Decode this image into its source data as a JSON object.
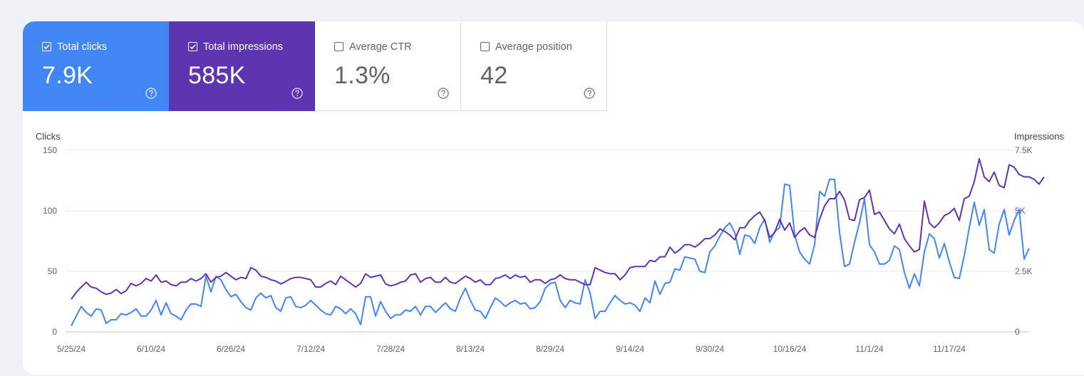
{
  "metrics": [
    {
      "label": "Total clicks",
      "value": "7.9K",
      "checked": true,
      "color": "#4285f4",
      "icon": "checkbox-checked-icon"
    },
    {
      "label": "Total impressions",
      "value": "585K",
      "checked": true,
      "color": "#5e35b1",
      "icon": "checkbox-checked-icon"
    },
    {
      "label": "Average CTR",
      "value": "1.3%",
      "checked": false,
      "color": "#ffffff",
      "icon": "checkbox-empty-icon"
    },
    {
      "label": "Average position",
      "value": "42",
      "checked": false,
      "color": "#ffffff",
      "icon": "checkbox-empty-icon"
    }
  ],
  "chart_data": {
    "type": "line",
    "left_axis_title": "Clicks",
    "right_axis_title": "Impressions",
    "left_ticks": [
      "150",
      "100",
      "50",
      "0"
    ],
    "right_ticks": [
      "7.5K",
      "5K",
      "2.5K",
      "0"
    ],
    "left_ylim": [
      0,
      150
    ],
    "right_ylim": [
      0,
      7500
    ],
    "x_ticks": [
      "5/25/24",
      "6/10/24",
      "6/26/24",
      "7/12/24",
      "7/28/24",
      "8/13/24",
      "8/29/24",
      "9/14/24",
      "9/30/24",
      "10/16/24",
      "11/1/24",
      "11/17/24"
    ],
    "x_start": "5/25/24",
    "x_end": "11/26/24",
    "grid": true,
    "series": [
      {
        "axis": "left",
        "color": "#4285f4",
        "values": [
          5,
          13,
          21,
          16,
          13,
          19,
          18,
          7,
          10,
          10,
          15,
          14,
          16,
          19,
          13,
          13,
          18,
          26,
          14,
          24,
          15,
          13,
          10,
          18,
          23,
          23,
          21,
          46,
          33,
          46,
          43,
          35,
          29,
          31,
          25,
          20,
          18,
          28,
          32,
          28,
          30,
          20,
          17,
          28,
          29,
          21,
          20,
          22,
          26,
          22,
          18,
          15,
          14,
          21,
          19,
          15,
          19,
          15,
          6,
          29,
          29,
          13,
          25,
          17,
          11,
          14,
          14,
          18,
          17,
          21,
          14,
          21,
          21,
          16,
          20,
          24,
          19,
          17,
          28,
          36,
          26,
          18,
          17,
          11,
          20,
          28,
          25,
          21,
          24,
          26,
          23,
          24,
          19,
          20,
          25,
          36,
          40,
          41,
          26,
          20,
          26,
          24,
          23,
          43,
          32,
          11,
          17,
          17,
          24,
          30,
          26,
          23,
          24,
          22,
          17,
          28,
          24,
          42,
          31,
          40,
          41,
          52,
          51,
          62,
          61,
          60,
          50,
          49,
          66,
          71,
          79,
          86,
          90,
          82,
          64,
          80,
          79,
          73,
          86,
          93,
          74,
          83,
          86,
          122,
          121,
          80,
          66,
          60,
          56,
          72,
          116,
          112,
          126,
          126,
          82,
          54,
          56,
          74,
          90,
          110,
          72,
          66,
          56,
          56,
          59,
          71,
          68,
          49,
          36,
          48,
          38,
          66,
          81,
          77,
          61,
          73,
          58,
          45,
          44,
          63,
          86,
          107,
          88,
          101,
          68,
          65,
          89,
          101,
          80,
          92,
          101,
          60,
          69
        ]
      },
      {
        "axis": "right",
        "color": "#5e35b1",
        "values": [
          1350,
          1630,
          1850,
          2050,
          1850,
          1800,
          1650,
          1550,
          1600,
          1750,
          1580,
          1700,
          2000,
          1900,
          2000,
          2200,
          2100,
          2350,
          2050,
          2100,
          1950,
          1900,
          2050,
          2050,
          2200,
          2100,
          2200,
          2400,
          2050,
          2250,
          2300,
          2450,
          2300,
          2150,
          2250,
          2200,
          2650,
          2550,
          2300,
          2250,
          2150,
          2100,
          1980,
          2080,
          2200,
          2250,
          2250,
          2200,
          2150,
          1850,
          1850,
          2000,
          2100,
          1950,
          2300,
          2150,
          2000,
          1850,
          2000,
          2400,
          2250,
          2300,
          2350,
          1980,
          1900,
          1950,
          2050,
          2100,
          2350,
          2400,
          2050,
          2200,
          2250,
          2050,
          2050,
          2250,
          2050,
          2000,
          2150,
          2300,
          2200,
          2050,
          2150,
          1950,
          1950,
          2200,
          2250,
          2350,
          2200,
          2350,
          2250,
          2300,
          2050,
          2150,
          2150,
          2000,
          2150,
          2200,
          2350,
          2200,
          2150,
          2150,
          2050,
          1950,
          1950,
          2650,
          2550,
          2450,
          2400,
          2400,
          2150,
          2350,
          2650,
          2700,
          2700,
          2700,
          2950,
          2900,
          3100,
          3100,
          3500,
          3250,
          3400,
          3600,
          3600,
          3500,
          3650,
          3850,
          3850,
          4000,
          4250,
          4150,
          4000,
          3800,
          4300,
          4300,
          4600,
          4800,
          4950,
          4600,
          3900,
          4100,
          4650,
          4200,
          4500,
          3900,
          4150,
          4300,
          4000,
          3900,
          4650,
          5200,
          5500,
          5500,
          5800,
          5450,
          4650,
          4600,
          5450,
          5550,
          5850,
          4850,
          4950,
          4600,
          4250,
          4050,
          4450,
          3850,
          3550,
          3300,
          3400,
          5400,
          4500,
          4300,
          4500,
          4800,
          4900,
          5100,
          4600,
          5500,
          5600,
          6200,
          7150,
          6400,
          6200,
          6600,
          6050,
          5950,
          6900,
          6800,
          6500,
          6400,
          6400,
          6300,
          6100,
          6400
        ]
      }
    ]
  }
}
